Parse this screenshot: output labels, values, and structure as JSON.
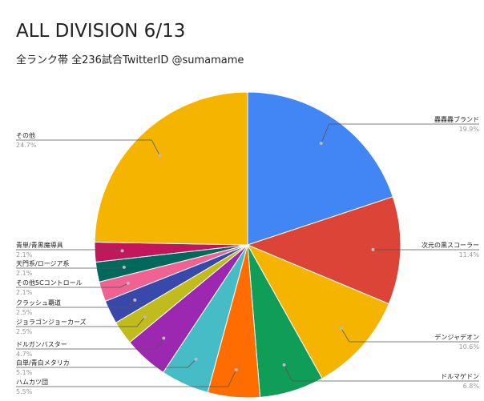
{
  "chart_data": {
    "type": "pie",
    "title": "ALL DIVISION 6/13",
    "subtitle": "全ランク帯 全236試合TwitterID @sumamame",
    "slices": [
      {
        "name": "轟轟轟ブランド",
        "value": 19.9,
        "label": "19.9%",
        "color": "#4285f4"
      },
      {
        "name": "次元の黒スコーラー",
        "value": 11.4,
        "label": "11.4%",
        "color": "#db4437"
      },
      {
        "name": "デンジャデオン",
        "value": 10.6,
        "label": "10.6%",
        "color": "#f4b400"
      },
      {
        "name": "ドルマゲドン",
        "value": 6.8,
        "label": "6.8%",
        "color": "#0f9d58"
      },
      {
        "name": "ハムカツ団",
        "value": 5.5,
        "label": "5.5%",
        "color": "#ff6d01"
      },
      {
        "name": "白単/青白メタリカ",
        "value": 5.1,
        "label": "5.1%",
        "color": "#46bdc6"
      },
      {
        "name": "ドルガンバスター",
        "value": 4.7,
        "label": "4.7%",
        "color": "#9c27b0"
      },
      {
        "name": "ジョラゴンジョーカーズ",
        "value": 2.5,
        "label": "2.5%",
        "color": "#c0bc1e"
      },
      {
        "name": "クラッシュ覇道",
        "value": 2.5,
        "label": "2.5%",
        "color": "#3949ab"
      },
      {
        "name": "その他5Cコントロール",
        "value": 2.1,
        "label": "2.1%",
        "color": "#f06292"
      },
      {
        "name": "天門系/ロージア系",
        "value": 2.1,
        "label": "2.1%",
        "color": "#00695c"
      },
      {
        "name": "青単/青黒魔導具",
        "value": 2.1,
        "label": "2.1%",
        "color": "#c2185b"
      },
      {
        "name": "その他",
        "value": 24.7,
        "label": "24.7%",
        "color": "#f4b400"
      }
    ],
    "legend": "none"
  }
}
